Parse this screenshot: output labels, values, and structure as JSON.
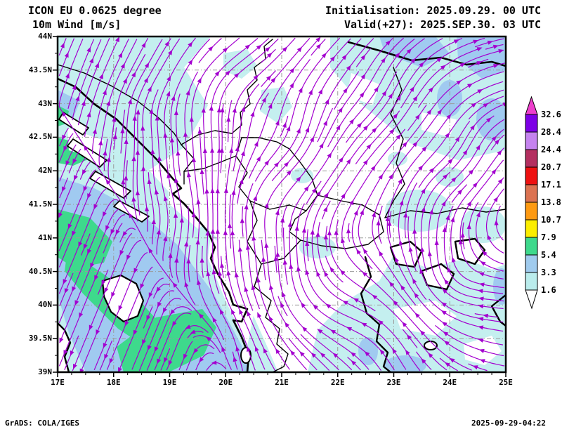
{
  "header": {
    "model": "ICON EU 0.0625 degree",
    "field": "10m Wind [m/s]",
    "initialisation": "Initialisation: 2025.09.29. 00 UTC",
    "valid": "Valid(+27): 2025.SEP.30. 03 UTC"
  },
  "map": {
    "lat_labels": [
      "44N",
      "43.5N",
      "43N",
      "42.5N",
      "42N",
      "41.5N",
      "41N",
      "40.5N",
      "40N",
      "39.5N",
      "39N"
    ],
    "lon_labels": [
      "17E",
      "18E",
      "19E",
      "20E",
      "21E",
      "22E",
      "23E",
      "24E",
      "25E"
    ],
    "extent": {
      "lon_min": 17,
      "lon_max": 25,
      "lat_min": 39,
      "lat_max": 44
    }
  },
  "legend": {
    "values": [
      "32.6",
      "28.4",
      "24.4",
      "20.7",
      "17.1",
      "13.8",
      "10.7",
      "7.9",
      "5.4",
      "3.3",
      "1.6"
    ],
    "colors_top_to_bottom": [
      "#7d00e6",
      "#c583ef",
      "#b42f60",
      "#ee1111",
      "#dc7352",
      "#fe9a12",
      "#fcee00",
      "#3ed98c",
      "#a0cbee",
      "#baecec"
    ],
    "arrow_color": "#ee3fcc"
  },
  "footer": {
    "left": "GrADS: COLA/IGES",
    "right": "2025-09-29-04:22"
  },
  "colors": {
    "streamline": "#a300cf",
    "coast": "#000000",
    "grid": "#9a9a9a",
    "shade_1_6": "#c4efef",
    "shade_3_3": "#a0caf0",
    "shade_5_4": "#3ed98c"
  },
  "chart_data": {
    "type": "streamline_map",
    "title": "ICON EU 0.0625 degree — 10m Wind [m/s]",
    "initialisation": "2025.09.29. 00 UTC",
    "valid": "Valid(+27): 2025.SEP.30. 03 UTC",
    "lon_range": [
      17,
      25
    ],
    "lat_range": [
      39,
      44
    ],
    "legend_bins_m_per_s": [
      1.6,
      3.3,
      5.4,
      7.9,
      10.7,
      13.8,
      17.1,
      20.7,
      24.4,
      28.4,
      32.6
    ],
    "legend_position": "right",
    "grid": "dashed, 1 deg lon x 0.5 deg lat"
  }
}
